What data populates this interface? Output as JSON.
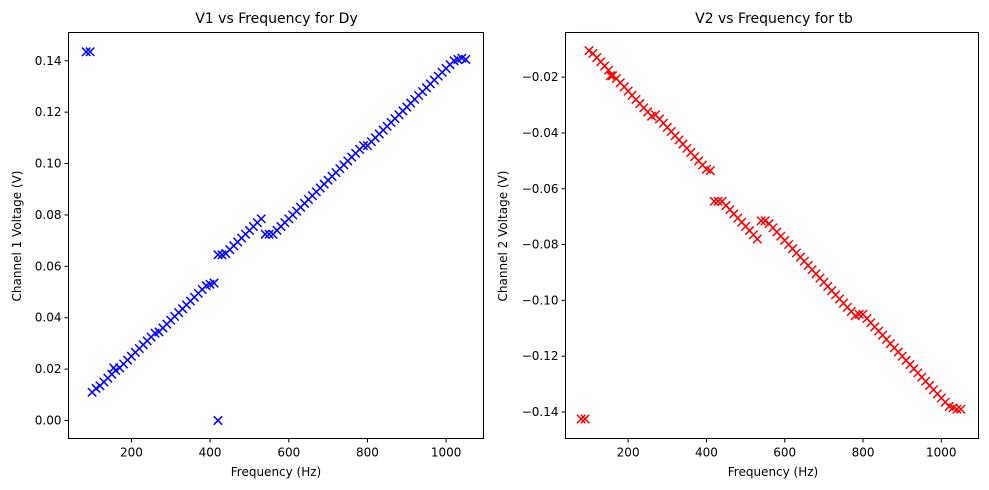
{
  "chart_data": [
    {
      "type": "scatter",
      "title": "V1 vs Frequency for Dy",
      "xlabel": "Frequency (Hz)",
      "ylabel": "Channel 1 Voltage (V)",
      "xlim": [
        40,
        1095
      ],
      "ylim": [
        -0.007,
        0.151
      ],
      "xticks": [
        200,
        400,
        600,
        800,
        1000
      ],
      "yticks": [
        0.0,
        0.02,
        0.04,
        0.06,
        0.08,
        0.1,
        0.12,
        0.14
      ],
      "ytick_labels": [
        "0.00",
        "0.02",
        "0.04",
        "0.06",
        "0.08",
        "0.10",
        "0.12",
        "0.14"
      ],
      "marker": "x",
      "color": "#0000ff",
      "series": [
        {
          "points": [
            [
              85,
              0.1435
            ],
            [
              95,
              0.1435
            ],
            [
              420,
              0.0
            ],
            [
              100,
              0.011
            ],
            [
              110,
              0.0125
            ],
            [
              120,
              0.0135
            ],
            [
              130,
              0.015
            ],
            [
              140,
              0.0165
            ],
            [
              150,
              0.018
            ],
            [
              155,
              0.0205
            ],
            [
              160,
              0.0195
            ],
            [
              170,
              0.0205
            ],
            [
              180,
              0.022
            ],
            [
              190,
              0.0235
            ],
            [
              200,
              0.025
            ],
            [
              210,
              0.0265
            ],
            [
              220,
              0.028
            ],
            [
              230,
              0.0295
            ],
            [
              240,
              0.031
            ],
            [
              250,
              0.0325
            ],
            [
              260,
              0.034
            ],
            [
              270,
              0.0345
            ],
            [
              280,
              0.036
            ],
            [
              290,
              0.0375
            ],
            [
              300,
              0.039
            ],
            [
              310,
              0.0405
            ],
            [
              320,
              0.042
            ],
            [
              330,
              0.0435
            ],
            [
              340,
              0.045
            ],
            [
              350,
              0.0465
            ],
            [
              360,
              0.048
            ],
            [
              370,
              0.0495
            ],
            [
              380,
              0.051
            ],
            [
              390,
              0.0525
            ],
            [
              400,
              0.053
            ],
            [
              410,
              0.0535
            ],
            [
              420,
              0.0645
            ],
            [
              430,
              0.0645
            ],
            [
              440,
              0.065
            ],
            [
              450,
              0.0665
            ],
            [
              460,
              0.068
            ],
            [
              470,
              0.0695
            ],
            [
              480,
              0.071
            ],
            [
              490,
              0.0725
            ],
            [
              500,
              0.074
            ],
            [
              510,
              0.0755
            ],
            [
              520,
              0.077
            ],
            [
              530,
              0.0785
            ],
            [
              540,
              0.0725
            ],
            [
              550,
              0.0725
            ],
            [
              560,
              0.0725
            ],
            [
              570,
              0.074
            ],
            [
              580,
              0.0755
            ],
            [
              590,
              0.077
            ],
            [
              600,
              0.0785
            ],
            [
              610,
              0.08
            ],
            [
              620,
              0.0815
            ],
            [
              630,
              0.083
            ],
            [
              640,
              0.0845
            ],
            [
              650,
              0.086
            ],
            [
              660,
              0.0875
            ],
            [
              670,
              0.089
            ],
            [
              680,
              0.0905
            ],
            [
              690,
              0.092
            ],
            [
              700,
              0.0935
            ],
            [
              710,
              0.095
            ],
            [
              720,
              0.0965
            ],
            [
              730,
              0.098
            ],
            [
              740,
              0.0995
            ],
            [
              750,
              0.101
            ],
            [
              760,
              0.1025
            ],
            [
              770,
              0.104
            ],
            [
              780,
              0.1055
            ],
            [
              790,
              0.107
            ],
            [
              800,
              0.107
            ],
            [
              810,
              0.1085
            ],
            [
              820,
              0.11
            ],
            [
              830,
              0.1115
            ],
            [
              840,
              0.113
            ],
            [
              850,
              0.1145
            ],
            [
              860,
              0.116
            ],
            [
              870,
              0.1175
            ],
            [
              880,
              0.119
            ],
            [
              890,
              0.1205
            ],
            [
              900,
              0.122
            ],
            [
              910,
              0.1235
            ],
            [
              920,
              0.125
            ],
            [
              930,
              0.1265
            ],
            [
              940,
              0.128
            ],
            [
              950,
              0.1295
            ],
            [
              960,
              0.131
            ],
            [
              970,
              0.1325
            ],
            [
              980,
              0.134
            ],
            [
              990,
              0.1355
            ],
            [
              1000,
              0.137
            ],
            [
              1010,
              0.1385
            ],
            [
              1020,
              0.14
            ],
            [
              1030,
              0.1405
            ],
            [
              1040,
              0.141
            ],
            [
              1050,
              0.1405
            ]
          ]
        }
      ]
    },
    {
      "type": "scatter",
      "title": "V2 vs Frequency for tb",
      "xlabel": "Frequency (Hz)",
      "ylabel": "Channel 2 Voltage (V)",
      "xlim": [
        40,
        1095
      ],
      "ylim": [
        -0.1495,
        -0.004
      ],
      "xticks": [
        200,
        400,
        600,
        800,
        1000
      ],
      "yticks": [
        -0.02,
        -0.04,
        -0.06,
        -0.08,
        -0.1,
        -0.12,
        -0.14
      ],
      "ytick_labels": [
        "−0.02",
        "−0.04",
        "−0.06",
        "−0.08",
        "−0.10",
        "−0.12",
        "−0.14"
      ],
      "marker": "x",
      "color": "#ff0000",
      "series": [
        {
          "points": [
            [
              80,
              -0.1425
            ],
            [
              90,
              -0.1425
            ],
            [
              100,
              -0.0105
            ],
            [
              110,
              -0.0115
            ],
            [
              120,
              -0.013
            ],
            [
              130,
              -0.0145
            ],
            [
              140,
              -0.016
            ],
            [
              150,
              -0.0175
            ],
            [
              155,
              -0.0195
            ],
            [
              160,
              -0.0195
            ],
            [
              170,
              -0.0205
            ],
            [
              180,
              -0.022
            ],
            [
              190,
              -0.0235
            ],
            [
              200,
              -0.025
            ],
            [
              210,
              -0.0265
            ],
            [
              220,
              -0.028
            ],
            [
              230,
              -0.0295
            ],
            [
              240,
              -0.031
            ],
            [
              250,
              -0.0325
            ],
            [
              260,
              -0.034
            ],
            [
              270,
              -0.0335
            ],
            [
              280,
              -0.035
            ],
            [
              290,
              -0.0365
            ],
            [
              300,
              -0.038
            ],
            [
              310,
              -0.0395
            ],
            [
              320,
              -0.041
            ],
            [
              330,
              -0.0425
            ],
            [
              340,
              -0.044
            ],
            [
              350,
              -0.0455
            ],
            [
              360,
              -0.047
            ],
            [
              370,
              -0.0485
            ],
            [
              380,
              -0.05
            ],
            [
              390,
              -0.0515
            ],
            [
              400,
              -0.053
            ],
            [
              410,
              -0.0535
            ],
            [
              420,
              -0.0645
            ],
            [
              430,
              -0.0645
            ],
            [
              440,
              -0.0645
            ],
            [
              450,
              -0.066
            ],
            [
              460,
              -0.0675
            ],
            [
              470,
              -0.069
            ],
            [
              480,
              -0.0705
            ],
            [
              490,
              -0.072
            ],
            [
              500,
              -0.0735
            ],
            [
              510,
              -0.075
            ],
            [
              520,
              -0.0765
            ],
            [
              530,
              -0.078
            ],
            [
              540,
              -0.0715
            ],
            [
              550,
              -0.0715
            ],
            [
              560,
              -0.0725
            ],
            [
              570,
              -0.074
            ],
            [
              580,
              -0.0755
            ],
            [
              590,
              -0.077
            ],
            [
              600,
              -0.0785
            ],
            [
              610,
              -0.08
            ],
            [
              620,
              -0.0815
            ],
            [
              630,
              -0.083
            ],
            [
              640,
              -0.0845
            ],
            [
              650,
              -0.086
            ],
            [
              660,
              -0.0875
            ],
            [
              670,
              -0.089
            ],
            [
              680,
              -0.0905
            ],
            [
              690,
              -0.092
            ],
            [
              700,
              -0.0935
            ],
            [
              710,
              -0.095
            ],
            [
              720,
              -0.0965
            ],
            [
              730,
              -0.098
            ],
            [
              740,
              -0.0995
            ],
            [
              750,
              -0.101
            ],
            [
              760,
              -0.1025
            ],
            [
              770,
              -0.104
            ],
            [
              780,
              -0.1055
            ],
            [
              790,
              -0.105
            ],
            [
              800,
              -0.105
            ],
            [
              810,
              -0.1065
            ],
            [
              820,
              -0.108
            ],
            [
              830,
              -0.1095
            ],
            [
              840,
              -0.111
            ],
            [
              850,
              -0.1125
            ],
            [
              860,
              -0.114
            ],
            [
              870,
              -0.1155
            ],
            [
              880,
              -0.117
            ],
            [
              890,
              -0.1185
            ],
            [
              900,
              -0.12
            ],
            [
              910,
              -0.1215
            ],
            [
              920,
              -0.123
            ],
            [
              930,
              -0.1245
            ],
            [
              940,
              -0.126
            ],
            [
              950,
              -0.1275
            ],
            [
              960,
              -0.129
            ],
            [
              970,
              -0.1305
            ],
            [
              980,
              -0.132
            ],
            [
              990,
              -0.1335
            ],
            [
              1000,
              -0.135
            ],
            [
              1010,
              -0.1365
            ],
            [
              1020,
              -0.138
            ],
            [
              1030,
              -0.1385
            ],
            [
              1040,
              -0.139
            ],
            [
              1050,
              -0.139
            ]
          ]
        }
      ]
    }
  ]
}
